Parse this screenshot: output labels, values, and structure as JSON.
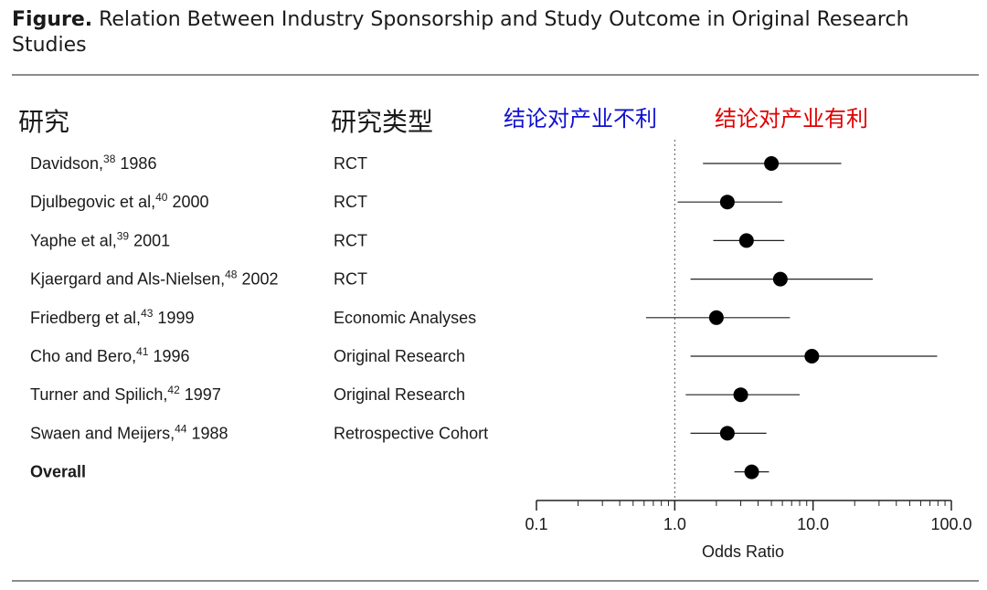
{
  "title": {
    "lead": "Figure.",
    "text": " Relation Between Industry Sponsorship and Study Outcome in Original Research Studies"
  },
  "headers": {
    "study": "研究",
    "type": "研究类型",
    "unfavorable": "结论对产业不利",
    "favorable": "结论对产业有利"
  },
  "colors": {
    "unfavorable": "#1010d0",
    "favorable": "#e00000",
    "text": "#1a1a1a",
    "rule": "#8c8c8c"
  },
  "chart_data": {
    "type": "scatter",
    "subtype": "forest-plot",
    "xscale": "log",
    "xlim": [
      0.1,
      100.0
    ],
    "xticks": [
      0.1,
      1.0,
      10.0,
      100.0
    ],
    "xtick_labels": [
      "0.1",
      "1.0",
      "10.0",
      "100.0"
    ],
    "xlabel": "Odds Ratio",
    "reference_line": 1.0,
    "rows": [
      {
        "study": "Davidson,",
        "ref": "38",
        "year": " 1986",
        "type": "RCT",
        "or": 5.0,
        "lo": 1.6,
        "hi": 16.0,
        "bold": false
      },
      {
        "study": "Djulbegovic et al,",
        "ref": "40",
        "year": " 2000",
        "type": "RCT",
        "or": 2.4,
        "lo": 1.05,
        "hi": 6.0,
        "bold": false
      },
      {
        "study": "Yaphe et al,",
        "ref": "39",
        "year": " 2001",
        "type": "RCT",
        "or": 3.3,
        "lo": 1.9,
        "hi": 6.2,
        "bold": false
      },
      {
        "study": "Kjaergard and Als-Nielsen,",
        "ref": "48",
        "year": " 2002",
        "type": "RCT",
        "or": 5.8,
        "lo": 1.3,
        "hi": 27.0,
        "bold": false
      },
      {
        "study": "Friedberg et al,",
        "ref": "43",
        "year": " 1999",
        "type": "Economic Analyses",
        "or": 2.0,
        "lo": 0.62,
        "hi": 6.8,
        "bold": false
      },
      {
        "study": "Cho and Bero,",
        "ref": "41",
        "year": " 1996",
        "type": "Original Research",
        "or": 9.8,
        "lo": 1.3,
        "hi": 79.0,
        "bold": false
      },
      {
        "study": "Turner and Spilich,",
        "ref": "42",
        "year": " 1997",
        "type": "Original Research",
        "or": 3.0,
        "lo": 1.2,
        "hi": 8.0,
        "bold": false
      },
      {
        "study": "Swaen and Meijers,",
        "ref": "44",
        "year": " 1988",
        "type": "Retrospective Cohort",
        "or": 2.4,
        "lo": 1.3,
        "hi": 4.6,
        "bold": false
      },
      {
        "study": "Overall",
        "ref": "",
        "year": "",
        "type": "",
        "or": 3.6,
        "lo": 2.7,
        "hi": 4.8,
        "bold": true
      }
    ]
  }
}
